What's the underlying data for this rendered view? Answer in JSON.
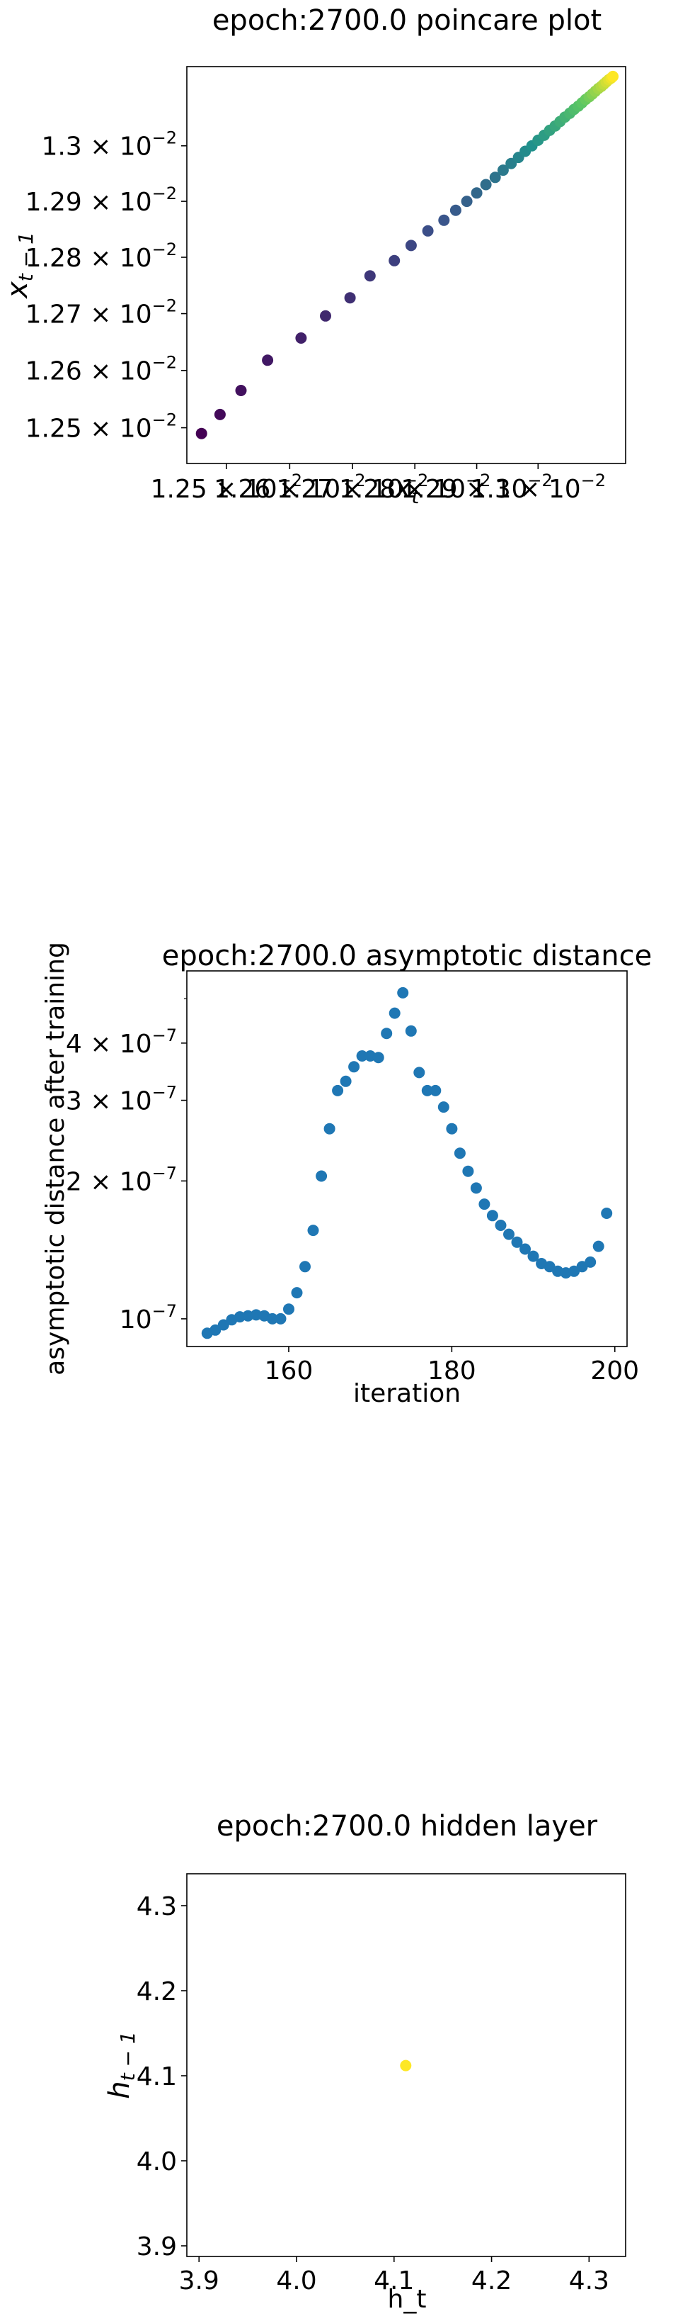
{
  "chart_data": [
    {
      "type": "scatter",
      "title": "epoch:2700.0 poincare plot",
      "xlabel": "x_t",
      "ylabel": "x_{t-1}",
      "scale": "log",
      "xlim": [
        0.012438,
        0.013144
      ],
      "ylim": [
        0.012438,
        0.013144
      ],
      "x_ticks": [
        {
          "value": 0.0125,
          "base": "1.25",
          "exp": "−2"
        },
        {
          "value": 0.0126,
          "base": "1.26",
          "exp": "−2"
        },
        {
          "value": 0.0127,
          "base": "1.27",
          "exp": "−2"
        },
        {
          "value": 0.0128,
          "base": "1.28",
          "exp": "−2"
        },
        {
          "value": 0.0129,
          "base": "1.29",
          "exp": "−2"
        },
        {
          "value": 0.013,
          "base": "1.3",
          "exp": "−2"
        }
      ],
      "y_ticks": [
        {
          "value": 0.0125,
          "base": "1.25",
          "exp": "−2"
        },
        {
          "value": 0.0126,
          "base": "1.26",
          "exp": "−2"
        },
        {
          "value": 0.0127,
          "base": "1.27",
          "exp": "−2"
        },
        {
          "value": 0.0128,
          "base": "1.28",
          "exp": "−2"
        },
        {
          "value": 0.0129,
          "base": "1.29",
          "exp": "−2"
        },
        {
          "value": 0.013,
          "base": "1.3",
          "exp": "−2"
        }
      ],
      "colormap": "viridis",
      "points": [
        [
          0.012461,
          0.01249
        ],
        [
          0.01249,
          0.012523
        ],
        [
          0.012523,
          0.012565
        ],
        [
          0.012565,
          0.012618
        ],
        [
          0.012618,
          0.012657
        ],
        [
          0.012657,
          0.012696
        ],
        [
          0.012696,
          0.012728
        ],
        [
          0.012728,
          0.012767
        ],
        [
          0.012767,
          0.012794
        ],
        [
          0.012794,
          0.012821
        ],
        [
          0.012821,
          0.012847
        ],
        [
          0.012847,
          0.012866
        ],
        [
          0.012866,
          0.012884
        ],
        [
          0.012884,
          0.0129
        ],
        [
          0.0129,
          0.012915
        ],
        [
          0.012915,
          0.01293
        ],
        [
          0.01293,
          0.012943
        ],
        [
          0.012943,
          0.012956
        ],
        [
          0.012956,
          0.012968
        ],
        [
          0.012968,
          0.012979
        ],
        [
          0.012979,
          0.01299
        ],
        [
          0.01299,
          0.013
        ],
        [
          0.013,
          0.01301
        ],
        [
          0.01301,
          0.013019
        ],
        [
          0.013019,
          0.013028
        ],
        [
          0.013028,
          0.013036
        ],
        [
          0.013036,
          0.013044
        ],
        [
          0.013044,
          0.013052
        ],
        [
          0.013052,
          0.013059
        ],
        [
          0.013059,
          0.013066
        ],
        [
          0.013066,
          0.013072
        ],
        [
          0.013072,
          0.013078
        ],
        [
          0.013078,
          0.013084
        ],
        [
          0.013084,
          0.013089
        ],
        [
          0.013089,
          0.013094
        ],
        [
          0.013094,
          0.013099
        ],
        [
          0.013099,
          0.013104
        ],
        [
          0.013104,
          0.013108
        ],
        [
          0.013108,
          0.013112
        ],
        [
          0.013112,
          0.013116
        ],
        [
          0.013116,
          0.01312
        ],
        [
          0.01312,
          0.013123
        ],
        [
          0.013123,
          0.013126
        ]
      ]
    },
    {
      "type": "scatter",
      "title": "epoch:2700.0 asymptotic distance",
      "xlabel": "iteration",
      "ylabel": "asymptotic distance after training",
      "yscale": "log",
      "xlim": [
        147.5,
        201.5
      ],
      "ylim": [
        8.7e-08,
        5.75e-07
      ],
      "x_ticks": [
        {
          "value": 160,
          "label": "160"
        },
        {
          "value": 180,
          "label": "180"
        },
        {
          "value": 200,
          "label": "200"
        }
      ],
      "y_ticks": [
        {
          "value": 1e-07,
          "base": "10",
          "exp": "−7"
        },
        {
          "value": 2e-07,
          "base": "2 × 10",
          "exp": "−7"
        },
        {
          "value": 3e-07,
          "base": "3 × 10",
          "exp": "−7"
        },
        {
          "value": 4e-07,
          "base": "4 × 10",
          "exp": "−7"
        }
      ],
      "color": "#1f77b4",
      "x": [
        150,
        151,
        152,
        153,
        154,
        155,
        156,
        157,
        158,
        159,
        160,
        161,
        162,
        163,
        164,
        165,
        166,
        167,
        168,
        169,
        170,
        171,
        172,
        173,
        174,
        175,
        176,
        177,
        178,
        179,
        180,
        181,
        182,
        183,
        184,
        185,
        186,
        187,
        188,
        189,
        190,
        191,
        192,
        193,
        194,
        195,
        196,
        197,
        198,
        199
      ],
      "y": [
        9.3e-08,
        9.45e-08,
        9.7e-08,
        9.95e-08,
        1.01e-07,
        1.015e-07,
        1.02e-07,
        1.015e-07,
        1e-07,
        1e-07,
        1.05e-07,
        1.14e-07,
        1.3e-07,
        1.56e-07,
        2.05e-07,
        2.6e-07,
        3.15e-07,
        3.3e-07,
        3.55e-07,
        3.75e-07,
        3.75e-07,
        3.72e-07,
        4.2e-07,
        4.65e-07,
        5.15e-07,
        4.25e-07,
        3.45e-07,
        3.15e-07,
        3.15e-07,
        2.9e-07,
        2.6e-07,
        2.3e-07,
        2.1e-07,
        1.93e-07,
        1.78e-07,
        1.68e-07,
        1.6e-07,
        1.53e-07,
        1.47e-07,
        1.42e-07,
        1.37e-07,
        1.32e-07,
        1.3e-07,
        1.27e-07,
        1.26e-07,
        1.27e-07,
        1.3e-07,
        1.33e-07,
        1.44e-07,
        1.7e-07
      ]
    },
    {
      "type": "scatter",
      "title": "epoch:2700.0 hidden layer",
      "xlabel": "h_t",
      "ylabel": "h_{t-1}",
      "xlim": [
        3.8875,
        4.3375
      ],
      "ylim": [
        3.8875,
        4.3375
      ],
      "x_ticks": [
        {
          "value": 3.9,
          "label": "3.9"
        },
        {
          "value": 4.0,
          "label": "4.0"
        },
        {
          "value": 4.1,
          "label": "4.1"
        },
        {
          "value": 4.2,
          "label": "4.2"
        },
        {
          "value": 4.3,
          "label": "4.3"
        }
      ],
      "y_ticks": [
        {
          "value": 3.9,
          "label": "3.9"
        },
        {
          "value": 4.0,
          "label": "4.0"
        },
        {
          "value": 4.1,
          "label": "4.1"
        },
        {
          "value": 4.2,
          "label": "4.2"
        },
        {
          "value": 4.3,
          "label": "4.3"
        }
      ],
      "color": "#fde725",
      "points": [
        [
          4.112,
          4.112
        ]
      ]
    }
  ]
}
